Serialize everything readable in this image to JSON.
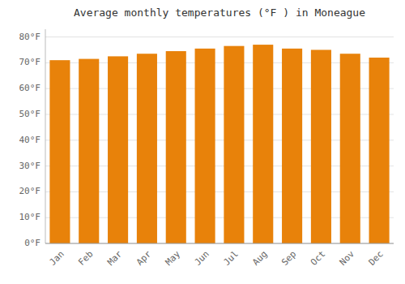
{
  "chart_data": {
    "type": "bar",
    "title": "Average monthly temperatures (°F ) in Moneague",
    "categories": [
      "Jan",
      "Feb",
      "Mar",
      "Apr",
      "May",
      "Jun",
      "Jul",
      "Aug",
      "Sep",
      "Oct",
      "Nov",
      "Dec"
    ],
    "values": [
      71.0,
      71.5,
      72.5,
      73.5,
      74.5,
      75.5,
      76.5,
      77.0,
      75.5,
      75.0,
      73.5,
      72.0
    ],
    "color": "#E8820A",
    "ylim": [
      0,
      83
    ],
    "yticks": [
      {
        "value": 0,
        "label": "0°F"
      },
      {
        "value": 10,
        "label": "10°F"
      },
      {
        "value": 20,
        "label": "20°F"
      },
      {
        "value": 30,
        "label": "30°F"
      },
      {
        "value": 40,
        "label": "40°F"
      },
      {
        "value": 50,
        "label": "50°F"
      },
      {
        "value": 60,
        "label": "60°F"
      },
      {
        "value": 70,
        "label": "70°F"
      },
      {
        "value": 80,
        "label": "80°F"
      }
    ],
    "grid": true
  }
}
